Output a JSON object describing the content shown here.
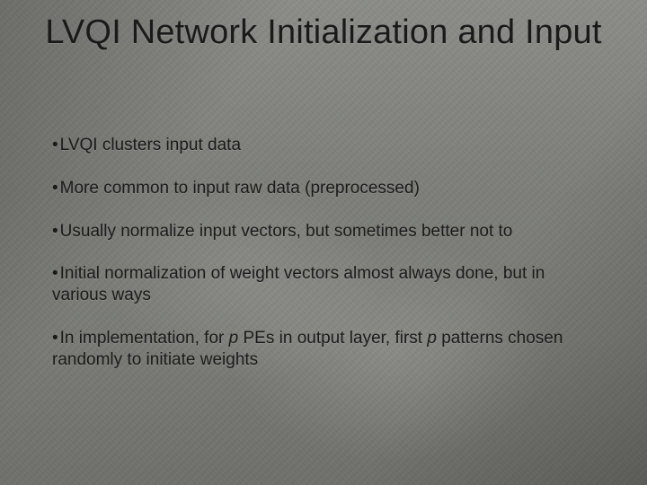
{
  "background_color": "#7d7e79",
  "text_color": "#1a1a1a",
  "title_fontsize": 38,
  "body_fontsize": 19,
  "title": "LVQI Network Initialization and Input",
  "bullets": {
    "b0": "LVQI clusters input data",
    "b1": "More common to input raw data (preprocessed)",
    "b2": "Usually normalize input vectors, but sometimes better not to",
    "b3": "Initial normalization of weight vectors almost always done, but in various ways",
    "b4_a": "In implementation, for ",
    "b4_p1": "p",
    "b4_b": " PEs in output layer, first ",
    "b4_p2": "p",
    "b4_c": " patterns chosen randomly to initiate weights"
  }
}
